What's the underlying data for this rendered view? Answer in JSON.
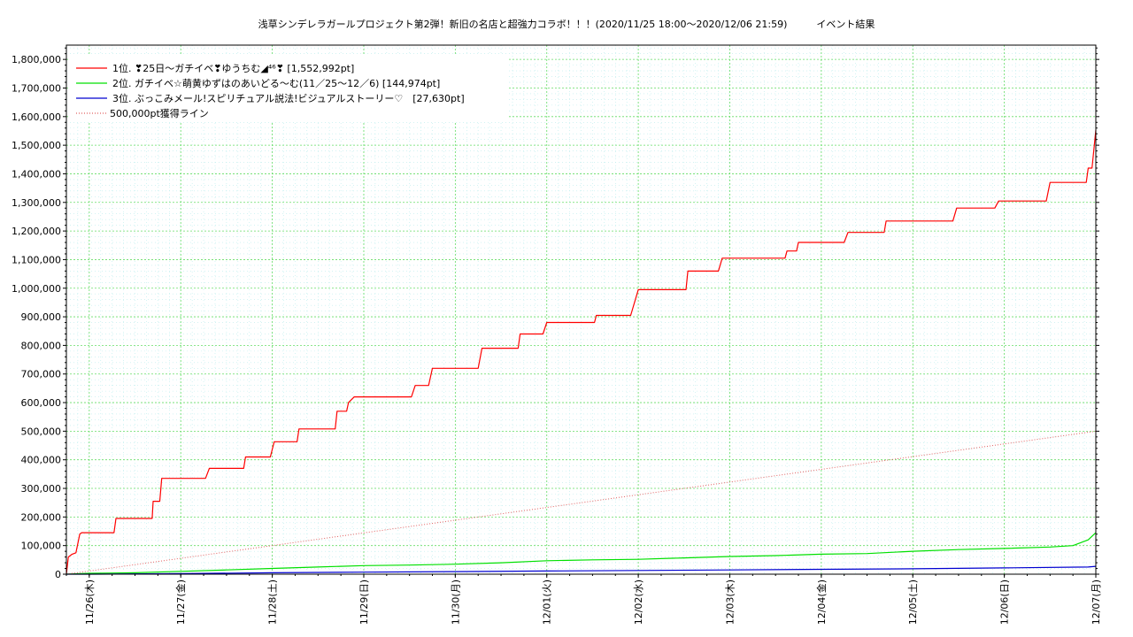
{
  "chart_data": {
    "type": "line",
    "title": "浅草シンデレラガールプロジェクト第2弾！新旧の名店と超強力コラボ！！！(2020/11/25 18:00〜2020/12/06 21:59)　　　イベント結果",
    "xlabel": "",
    "ylabel": "",
    "x_range": [
      "2020-11-25 18:00",
      "2020-12-07 00:00"
    ],
    "ylim": [
      0,
      1850000
    ],
    "y_ticks": [
      0,
      100000,
      200000,
      300000,
      400000,
      500000,
      600000,
      700000,
      800000,
      900000,
      1000000,
      1100000,
      1200000,
      1300000,
      1400000,
      1500000,
      1600000,
      1700000,
      1800000
    ],
    "y_tick_labels": [
      "0",
      "100,000",
      "200,000",
      "300,000",
      "400,000",
      "500,000",
      "600,000",
      "700,000",
      "800,000",
      "900,000",
      "1,000,000",
      "1,100,000",
      "1,200,000",
      "1,300,000",
      "1,400,000",
      "1,500,000",
      "1,600,000",
      "1,700,000",
      "1,800,000"
    ],
    "x_ticks": [
      {
        "x": "2020-11-26 00:00",
        "label": "11/26(木)"
      },
      {
        "x": "2020-11-27 00:00",
        "label": "11/27(金)"
      },
      {
        "x": "2020-11-28 00:00",
        "label": "11/28(土)"
      },
      {
        "x": "2020-11-29 00:00",
        "label": "11/29(日)"
      },
      {
        "x": "2020-11-30 00:00",
        "label": "11/30(月)"
      },
      {
        "x": "2020-12-01 00:00",
        "label": "12/01(火)"
      },
      {
        "x": "2020-12-02 00:00",
        "label": "12/02(水)"
      },
      {
        "x": "2020-12-03 00:00",
        "label": "12/03(木)"
      },
      {
        "x": "2020-12-04 00:00",
        "label": "12/04(金)"
      },
      {
        "x": "2020-12-05 00:00",
        "label": "12/05(土)"
      },
      {
        "x": "2020-12-06 00:00",
        "label": "12/06(日)"
      },
      {
        "x": "2020-12-07 00:00",
        "label": "12/07(月)"
      }
    ],
    "grid": true,
    "legend_position": "top-left",
    "series": [
      {
        "name": "1位. ❣25日〜ガチイベ❣ゆうちむ◢⁴⁶❣ [1,552,992pt]",
        "color": "#ff0000",
        "style": "solid",
        "x": [
          "2020-11-25 18:00",
          "2020-11-25 18:30",
          "2020-11-25 19:30",
          "2020-11-25 20:30",
          "2020-11-25 21:30",
          "2020-11-25 22:00",
          "2020-11-26 06:30",
          "2020-11-26 07:00",
          "2020-11-26 16:30",
          "2020-11-26 16:45",
          "2020-11-26 18:30",
          "2020-11-26 19:00",
          "2020-11-27 06:30",
          "2020-11-27 07:30",
          "2020-11-27 16:30",
          "2020-11-27 17:00",
          "2020-11-27 23:30",
          "2020-11-28 00:30",
          "2020-11-28 06:30",
          "2020-11-28 07:00",
          "2020-11-28 16:30",
          "2020-11-28 17:00",
          "2020-11-28 19:30",
          "2020-11-28 20:00",
          "2020-11-28 21:30",
          "2020-11-28 23:00",
          "2020-11-29 12:30",
          "2020-11-29 13:30",
          "2020-11-29 17:00",
          "2020-11-29 18:00",
          "2020-11-30 06:00",
          "2020-11-30 07:00",
          "2020-11-30 16:30",
          "2020-11-30 17:00",
          "2020-11-30 23:00",
          "2020-12-01 00:00",
          "2020-12-01 12:30",
          "2020-12-01 13:00",
          "2020-12-01 22:00",
          "2020-12-02 00:00",
          "2020-12-02 12:30",
          "2020-12-02 13:00",
          "2020-12-02 21:00",
          "2020-12-02 22:00",
          "2020-12-03 14:30",
          "2020-12-03 15:00",
          "2020-12-03 17:30",
          "2020-12-03 18:00",
          "2020-12-04 06:00",
          "2020-12-04 07:00",
          "2020-12-04 16:30",
          "2020-12-04 17:00",
          "2020-12-05 10:30",
          "2020-12-05 11:30",
          "2020-12-05 21:30",
          "2020-12-05 22:30",
          "2020-12-06 11:00",
          "2020-12-06 12:00",
          "2020-12-06 21:30",
          "2020-12-06 22:00",
          "2020-12-06 23:00",
          "2020-12-07 00:00"
        ],
        "y": [
          0,
          60000,
          70000,
          75000,
          140000,
          145000,
          145000,
          195000,
          195000,
          255000,
          255000,
          335000,
          335000,
          370000,
          370000,
          410000,
          410000,
          463000,
          463000,
          508000,
          508000,
          570000,
          570000,
          600000,
          620000,
          620000,
          620000,
          660000,
          660000,
          720000,
          720000,
          790000,
          790000,
          840000,
          840000,
          880000,
          880000,
          905000,
          905000,
          995000,
          995000,
          1060000,
          1060000,
          1105000,
          1105000,
          1130000,
          1130000,
          1160000,
          1160000,
          1195000,
          1195000,
          1235000,
          1235000,
          1280000,
          1280000,
          1305000,
          1305000,
          1370000,
          1370000,
          1420000,
          1420000,
          1552992
        ]
      },
      {
        "name": "2位. ガチイベ☆萌黄ゆずはのあいどる〜む(11／25〜12／6) [144,974pt]",
        "color": "#00e000",
        "style": "solid",
        "x": [
          "2020-11-25 18:00",
          "2020-11-26 00:00",
          "2020-11-26 12:00",
          "2020-11-27 00:00",
          "2020-11-27 12:00",
          "2020-11-28 00:00",
          "2020-11-28 12:00",
          "2020-11-29 00:00",
          "2020-11-29 12:00",
          "2020-11-30 00:00",
          "2020-11-30 12:00",
          "2020-12-01 00:00",
          "2020-12-01 12:00",
          "2020-12-02 00:00",
          "2020-12-02 12:00",
          "2020-12-03 00:00",
          "2020-12-03 12:00",
          "2020-12-04 00:00",
          "2020-12-04 12:00",
          "2020-12-05 00:00",
          "2020-12-05 12:00",
          "2020-12-06 00:00",
          "2020-12-06 12:00",
          "2020-12-06 18:00",
          "2020-12-06 22:00",
          "2020-12-07 00:00"
        ],
        "y": [
          0,
          3000,
          5000,
          10000,
          15000,
          20000,
          25000,
          30000,
          32000,
          35000,
          40000,
          47000,
          50000,
          52000,
          57000,
          62000,
          65000,
          70000,
          72000,
          80000,
          86000,
          90000,
          95000,
          100000,
          120000,
          144974
        ]
      },
      {
        "name": "3位. ぶっこみメール!スピリチュアル説法!ビジュアルストーリー♡　[27,630pt]",
        "color": "#0000d0",
        "style": "solid",
        "x": [
          "2020-11-25 18:00",
          "2020-11-26 00:00",
          "2020-11-27 00:00",
          "2020-11-28 00:00",
          "2020-11-29 00:00",
          "2020-11-30 00:00",
          "2020-12-01 00:00",
          "2020-12-02 00:00",
          "2020-12-03 00:00",
          "2020-12-04 00:00",
          "2020-12-05 00:00",
          "2020-12-06 00:00",
          "2020-12-06 22:00",
          "2020-12-07 00:00"
        ],
        "y": [
          0,
          0,
          2000,
          5000,
          7000,
          9000,
          11000,
          13000,
          15000,
          17000,
          19000,
          22000,
          25000,
          27630
        ]
      },
      {
        "name": "500,000pt獲得ライン",
        "color": "#e06060",
        "style": "dotted",
        "x": [
          "2020-11-25 18:00",
          "2020-12-07 00:00"
        ],
        "y": [
          0,
          500000
        ]
      }
    ]
  }
}
